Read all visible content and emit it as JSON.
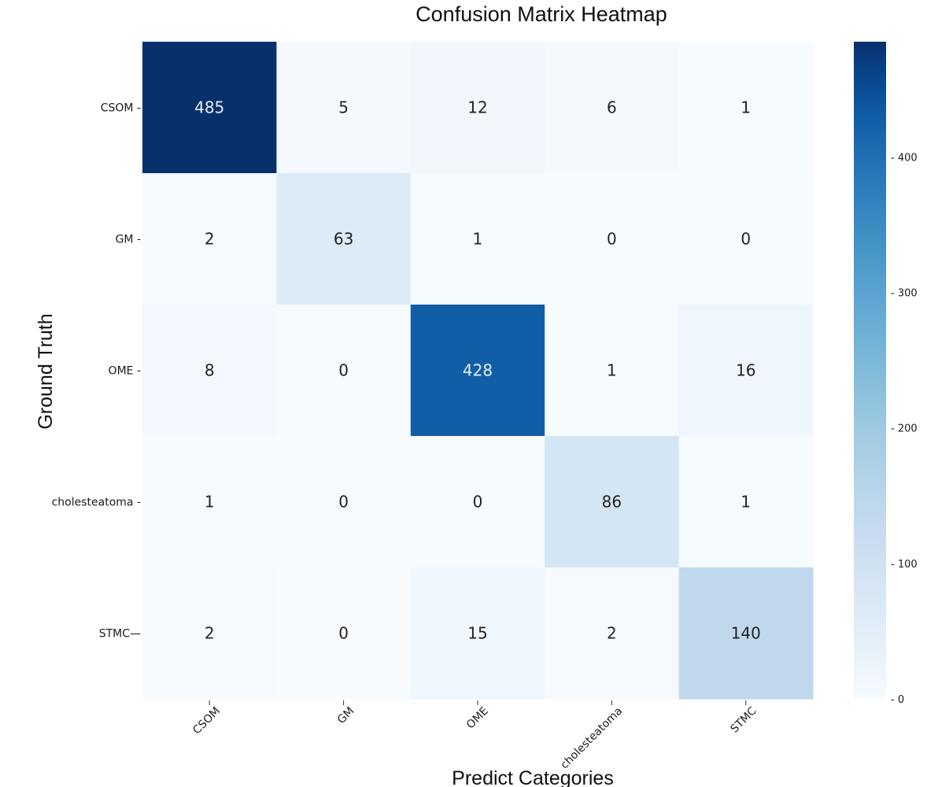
{
  "chart_data": {
    "type": "heatmap",
    "title": "Confusion Matrix Heatmap",
    "xlabel": "Predict Categories",
    "ylabel": "Ground Truth",
    "rows": [
      "CSOM",
      "GM",
      "OME",
      "cholesteatoma",
      "STMC"
    ],
    "cols": [
      "CSOM",
      "GM",
      "OME",
      "cholesteatoma",
      "STMC"
    ],
    "row_tick_labels": [
      "CSOM -",
      "GM -",
      "OME -",
      "cholesteatoma -",
      "STMC—"
    ],
    "col_tick_labels": [
      "CSOM",
      "GM",
      "OME",
      "cholesteatoma",
      "STMC"
    ],
    "values": [
      [
        485,
        5,
        12,
        6,
        1
      ],
      [
        2,
        63,
        1,
        0,
        0
      ],
      [
        8,
        0,
        428,
        1,
        16
      ],
      [
        1,
        0,
        0,
        86,
        1
      ],
      [
        2,
        0,
        15,
        2,
        140
      ]
    ],
    "colorbar": {
      "min": 0,
      "max": 485,
      "ticks": [
        0,
        100,
        200,
        300,
        400
      ],
      "tick_labels": [
        "- 0",
        "- 100",
        "- 200",
        "- 300",
        "- 400"
      ]
    },
    "colormap": "Blues",
    "colors": {
      "low": "#f7fbff",
      "high": "#08306b",
      "text_dark": "#222222",
      "text_light": "#e8eef5"
    }
  }
}
